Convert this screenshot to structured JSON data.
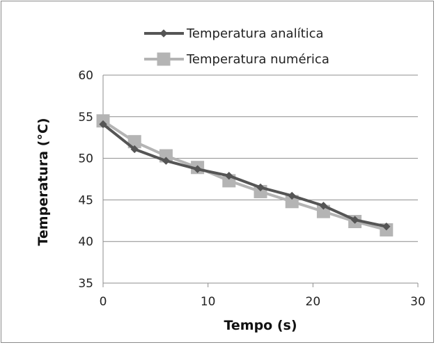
{
  "chart_data": {
    "type": "line",
    "xlabel": "Tempo (s)",
    "ylabel": "Temperatura (°C)",
    "xlim": [
      0,
      30
    ],
    "ylim": [
      35,
      60
    ],
    "xticks": [
      0,
      10,
      20,
      30
    ],
    "yticks": [
      35,
      40,
      45,
      50,
      55,
      60
    ],
    "x_tick_labels": [
      "0",
      "10",
      "20",
      "30"
    ],
    "y_tick_labels": [
      "35",
      "40",
      "45",
      "50",
      "55",
      "60"
    ],
    "grid": "horizontal",
    "legend_position": "top",
    "series": [
      {
        "name": "Temperatura analítica",
        "color": "#555555",
        "marker": "diamond",
        "points": [
          [
            0,
            54.1
          ],
          [
            3,
            51.1
          ],
          [
            6,
            49.7
          ],
          [
            9,
            48.7
          ],
          [
            12,
            47.9
          ],
          [
            15,
            46.5
          ],
          [
            18,
            45.5
          ],
          [
            21,
            44.3
          ],
          [
            24,
            42.6
          ],
          [
            27,
            41.8
          ]
        ]
      },
      {
        "name": "Temperatura numérica",
        "color": "#b4b4b4",
        "marker": "square",
        "points": [
          [
            0,
            54.5
          ],
          [
            3,
            52.0
          ],
          [
            6,
            50.3
          ],
          [
            9,
            48.9
          ],
          [
            12,
            47.3
          ],
          [
            15,
            46.0
          ],
          [
            18,
            44.8
          ],
          [
            21,
            43.6
          ],
          [
            24,
            42.4
          ],
          [
            27,
            41.4
          ]
        ]
      }
    ]
  }
}
